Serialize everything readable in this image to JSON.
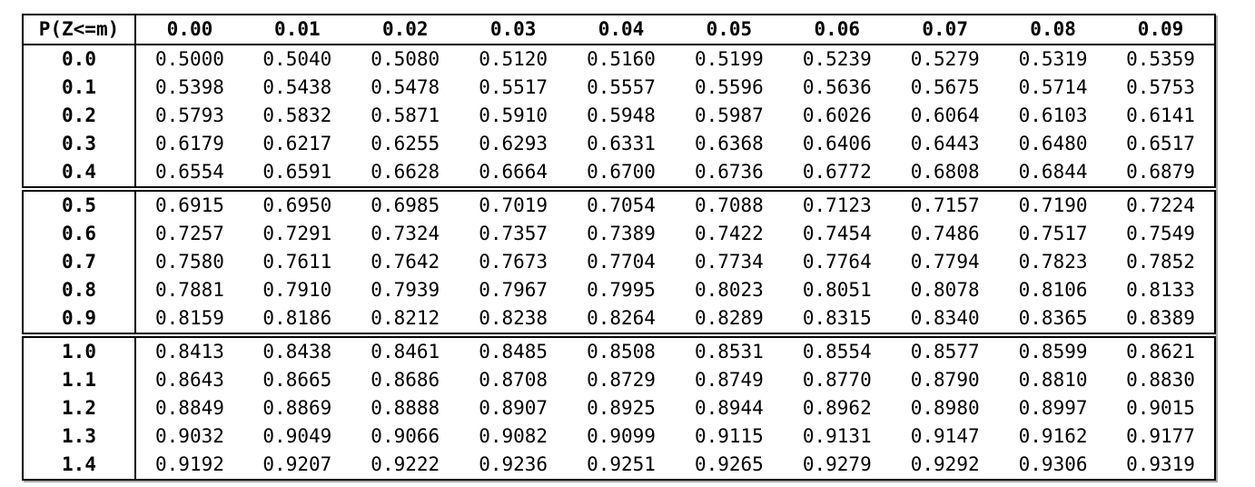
{
  "table": {
    "corner_label": "P(Z<=m)",
    "column_headers": [
      "0.00",
      "0.01",
      "0.02",
      "0.03",
      "0.04",
      "0.05",
      "0.06",
      "0.07",
      "0.08",
      "0.09"
    ],
    "row_groups": [
      {
        "rows": [
          {
            "label": "0.0",
            "values": [
              "0.5000",
              "0.5040",
              "0.5080",
              "0.5120",
              "0.5160",
              "0.5199",
              "0.5239",
              "0.5279",
              "0.5319",
              "0.5359"
            ]
          },
          {
            "label": "0.1",
            "values": [
              "0.5398",
              "0.5438",
              "0.5478",
              "0.5517",
              "0.5557",
              "0.5596",
              "0.5636",
              "0.5675",
              "0.5714",
              "0.5753"
            ]
          },
          {
            "label": "0.2",
            "values": [
              "0.5793",
              "0.5832",
              "0.5871",
              "0.5910",
              "0.5948",
              "0.5987",
              "0.6026",
              "0.6064",
              "0.6103",
              "0.6141"
            ]
          },
          {
            "label": "0.3",
            "values": [
              "0.6179",
              "0.6217",
              "0.6255",
              "0.6293",
              "0.6331",
              "0.6368",
              "0.6406",
              "0.6443",
              "0.6480",
              "0.6517"
            ]
          },
          {
            "label": "0.4",
            "values": [
              "0.6554",
              "0.6591",
              "0.6628",
              "0.6664",
              "0.6700",
              "0.6736",
              "0.6772",
              "0.6808",
              "0.6844",
              "0.6879"
            ]
          }
        ]
      },
      {
        "rows": [
          {
            "label": "0.5",
            "values": [
              "0.6915",
              "0.6950",
              "0.6985",
              "0.7019",
              "0.7054",
              "0.7088",
              "0.7123",
              "0.7157",
              "0.7190",
              "0.7224"
            ]
          },
          {
            "label": "0.6",
            "values": [
              "0.7257",
              "0.7291",
              "0.7324",
              "0.7357",
              "0.7389",
              "0.7422",
              "0.7454",
              "0.7486",
              "0.7517",
              "0.7549"
            ]
          },
          {
            "label": "0.7",
            "values": [
              "0.7580",
              "0.7611",
              "0.7642",
              "0.7673",
              "0.7704",
              "0.7734",
              "0.7764",
              "0.7794",
              "0.7823",
              "0.7852"
            ]
          },
          {
            "label": "0.8",
            "values": [
              "0.7881",
              "0.7910",
              "0.7939",
              "0.7967",
              "0.7995",
              "0.8023",
              "0.8051",
              "0.8078",
              "0.8106",
              "0.8133"
            ]
          },
          {
            "label": "0.9",
            "values": [
              "0.8159",
              "0.8186",
              "0.8212",
              "0.8238",
              "0.8264",
              "0.8289",
              "0.8315",
              "0.8340",
              "0.8365",
              "0.8389"
            ]
          }
        ]
      },
      {
        "rows": [
          {
            "label": "1.0",
            "values": [
              "0.8413",
              "0.8438",
              "0.8461",
              "0.8485",
              "0.8508",
              "0.8531",
              "0.8554",
              "0.8577",
              "0.8599",
              "0.8621"
            ]
          },
          {
            "label": "1.1",
            "values": [
              "0.8643",
              "0.8665",
              "0.8686",
              "0.8708",
              "0.8729",
              "0.8749",
              "0.8770",
              "0.8790",
              "0.8810",
              "0.8830"
            ]
          },
          {
            "label": "1.2",
            "values": [
              "0.8849",
              "0.8869",
              "0.8888",
              "0.8907",
              "0.8925",
              "0.8944",
              "0.8962",
              "0.8980",
              "0.8997",
              "0.9015"
            ]
          },
          {
            "label": "1.3",
            "values": [
              "0.9032",
              "0.9049",
              "0.9066",
              "0.9082",
              "0.9099",
              "0.9115",
              "0.9131",
              "0.9147",
              "0.9162",
              "0.9177"
            ]
          },
          {
            "label": "1.4",
            "values": [
              "0.9192",
              "0.9207",
              "0.9222",
              "0.9236",
              "0.9251",
              "0.9265",
              "0.9279",
              "0.9292",
              "0.9306",
              "0.9319"
            ]
          }
        ]
      }
    ],
    "colors": {
      "text": "#000000",
      "border": "#000000",
      "background": "#ffffff"
    }
  }
}
